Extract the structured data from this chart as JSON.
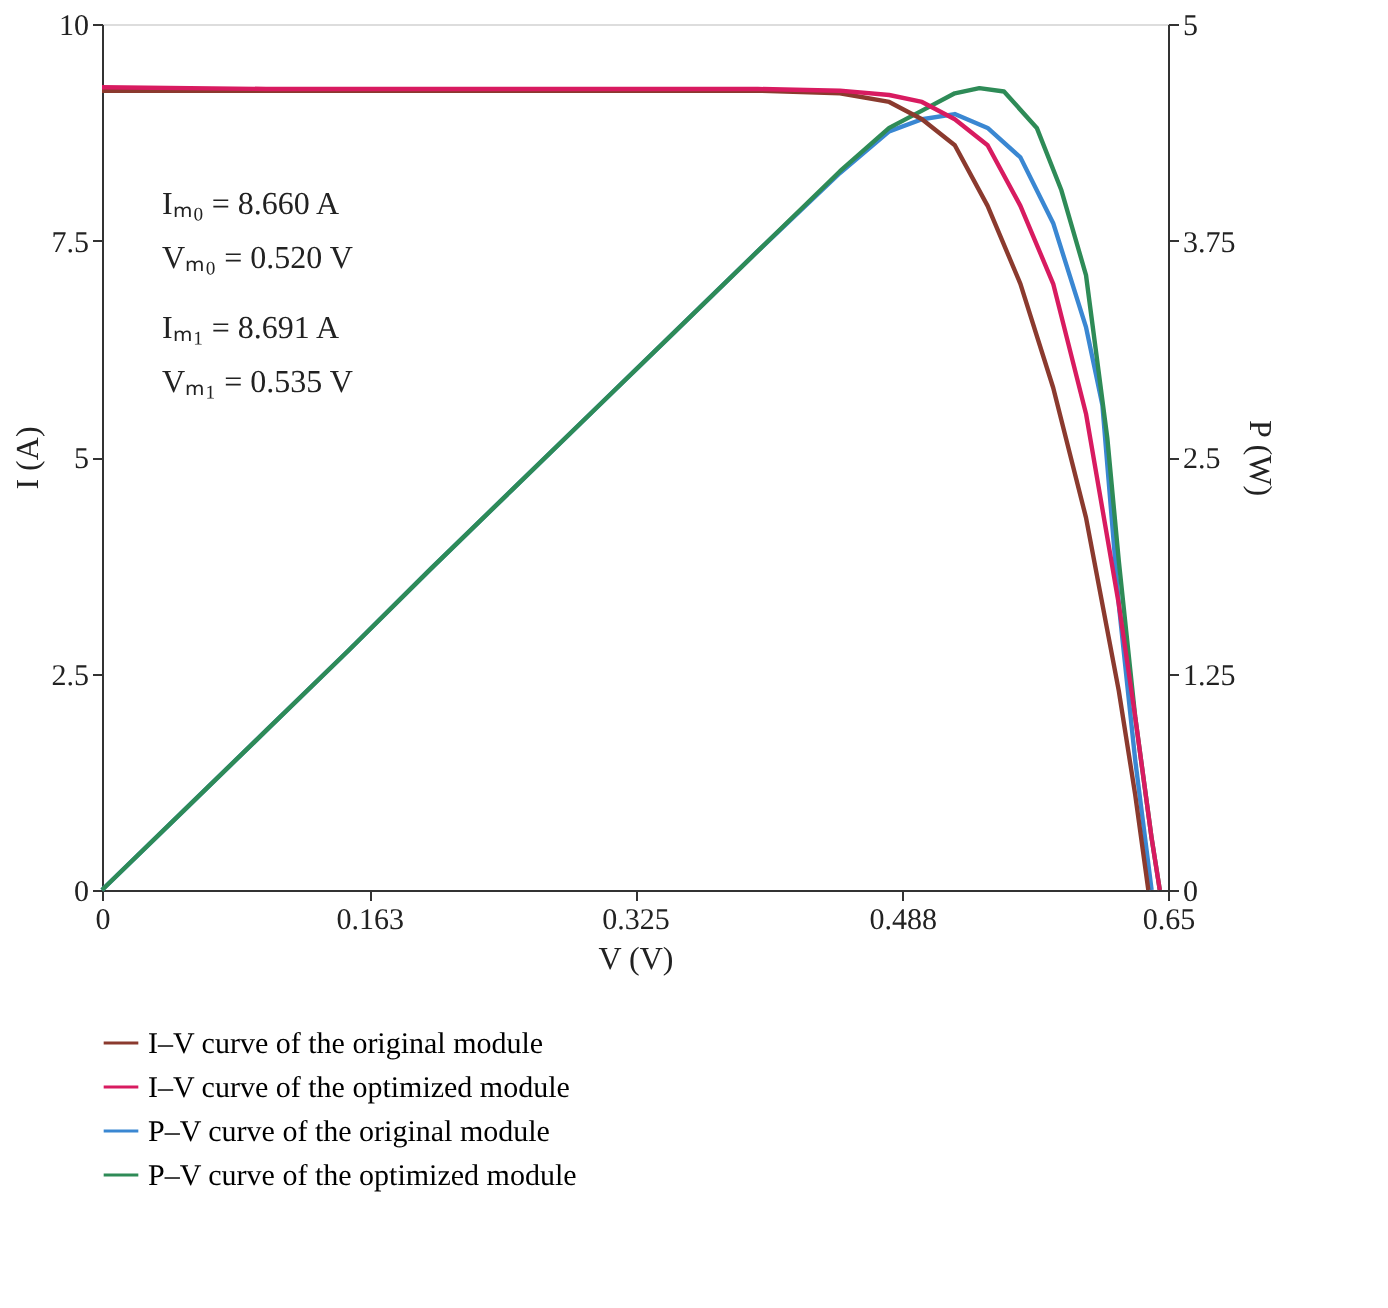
{
  "chart_data": {
    "type": "line",
    "xlabel": "V (V)",
    "ylabel": "I (A)",
    "y2label": "P (W)",
    "xlim": [
      0,
      0.65
    ],
    "xticks": [
      0,
      0.163,
      0.325,
      0.488,
      0.65
    ],
    "ylim": [
      0,
      10
    ],
    "yticks": [
      0,
      2.5,
      5,
      7.5,
      10
    ],
    "y2lim": [
      0,
      5
    ],
    "y2ticks": [
      0,
      1.25,
      2.5,
      3.75,
      5
    ],
    "grid": false,
    "legend": "bottom left",
    "line_style": "solid",
    "marker": "none",
    "annotations": [
      "Iₘ₀ = 8.660 A",
      "Vₘ₀ = 0.520 V",
      "Iₘ₁ = 8.691 A",
      "Vₘ₁ = 0.535 V"
    ],
    "series": [
      {
        "name": "I–V curve of the original module",
        "color": "#8b3a2e",
        "x": [
          0,
          0.1,
          0.2,
          0.3,
          0.4,
          0.45,
          0.48,
          0.5,
          0.52,
          0.54,
          0.56,
          0.58,
          0.6,
          0.62,
          0.63,
          0.638
        ],
        "values": [
          9.23,
          9.23,
          9.23,
          9.23,
          9.23,
          9.2,
          9.1,
          8.9,
          8.6,
          7.9,
          7.0,
          5.8,
          4.3,
          2.3,
          1.1,
          0
        ]
      },
      {
        "name": "I–V curve of the optimized module",
        "color": "#d81b60",
        "x": [
          0,
          0.1,
          0.2,
          0.3,
          0.4,
          0.45,
          0.48,
          0.5,
          0.52,
          0.54,
          0.56,
          0.58,
          0.6,
          0.62,
          0.63,
          0.64,
          0.645
        ],
        "values": [
          9.27,
          9.25,
          9.25,
          9.25,
          9.25,
          9.23,
          9.18,
          9.1,
          8.9,
          8.6,
          7.9,
          7.0,
          5.5,
          3.3,
          2.0,
          0.6,
          0
        ]
      },
      {
        "name": "P–V curve of the original module",
        "color": "#3a87d2",
        "axis": "y2",
        "x": [
          0,
          0.05,
          0.1,
          0.15,
          0.2,
          0.25,
          0.3,
          0.35,
          0.4,
          0.45,
          0.48,
          0.5,
          0.52,
          0.54,
          0.56,
          0.58,
          0.6,
          0.61,
          0.62,
          0.63,
          0.64
        ],
        "values": [
          0,
          0.46,
          0.92,
          1.38,
          1.85,
          2.31,
          2.77,
          3.23,
          3.69,
          4.14,
          4.38,
          4.45,
          4.48,
          4.4,
          4.23,
          3.85,
          3.25,
          2.8,
          1.65,
          0.75,
          0
        ]
      },
      {
        "name": "P–V curve of the optimized module",
        "color": "#2e8b57",
        "axis": "y2",
        "x": [
          0,
          0.05,
          0.1,
          0.15,
          0.2,
          0.25,
          0.3,
          0.35,
          0.4,
          0.45,
          0.48,
          0.5,
          0.52,
          0.535,
          0.55,
          0.57,
          0.585,
          0.6,
          0.613,
          0.62,
          0.63,
          0.64,
          0.645
        ],
        "values": [
          0,
          0.46,
          0.92,
          1.38,
          1.85,
          2.31,
          2.77,
          3.23,
          3.69,
          4.15,
          4.4,
          4.5,
          4.6,
          4.63,
          4.61,
          4.4,
          4.04,
          3.55,
          2.61,
          1.9,
          1.0,
          0.3,
          0
        ]
      }
    ]
  }
}
